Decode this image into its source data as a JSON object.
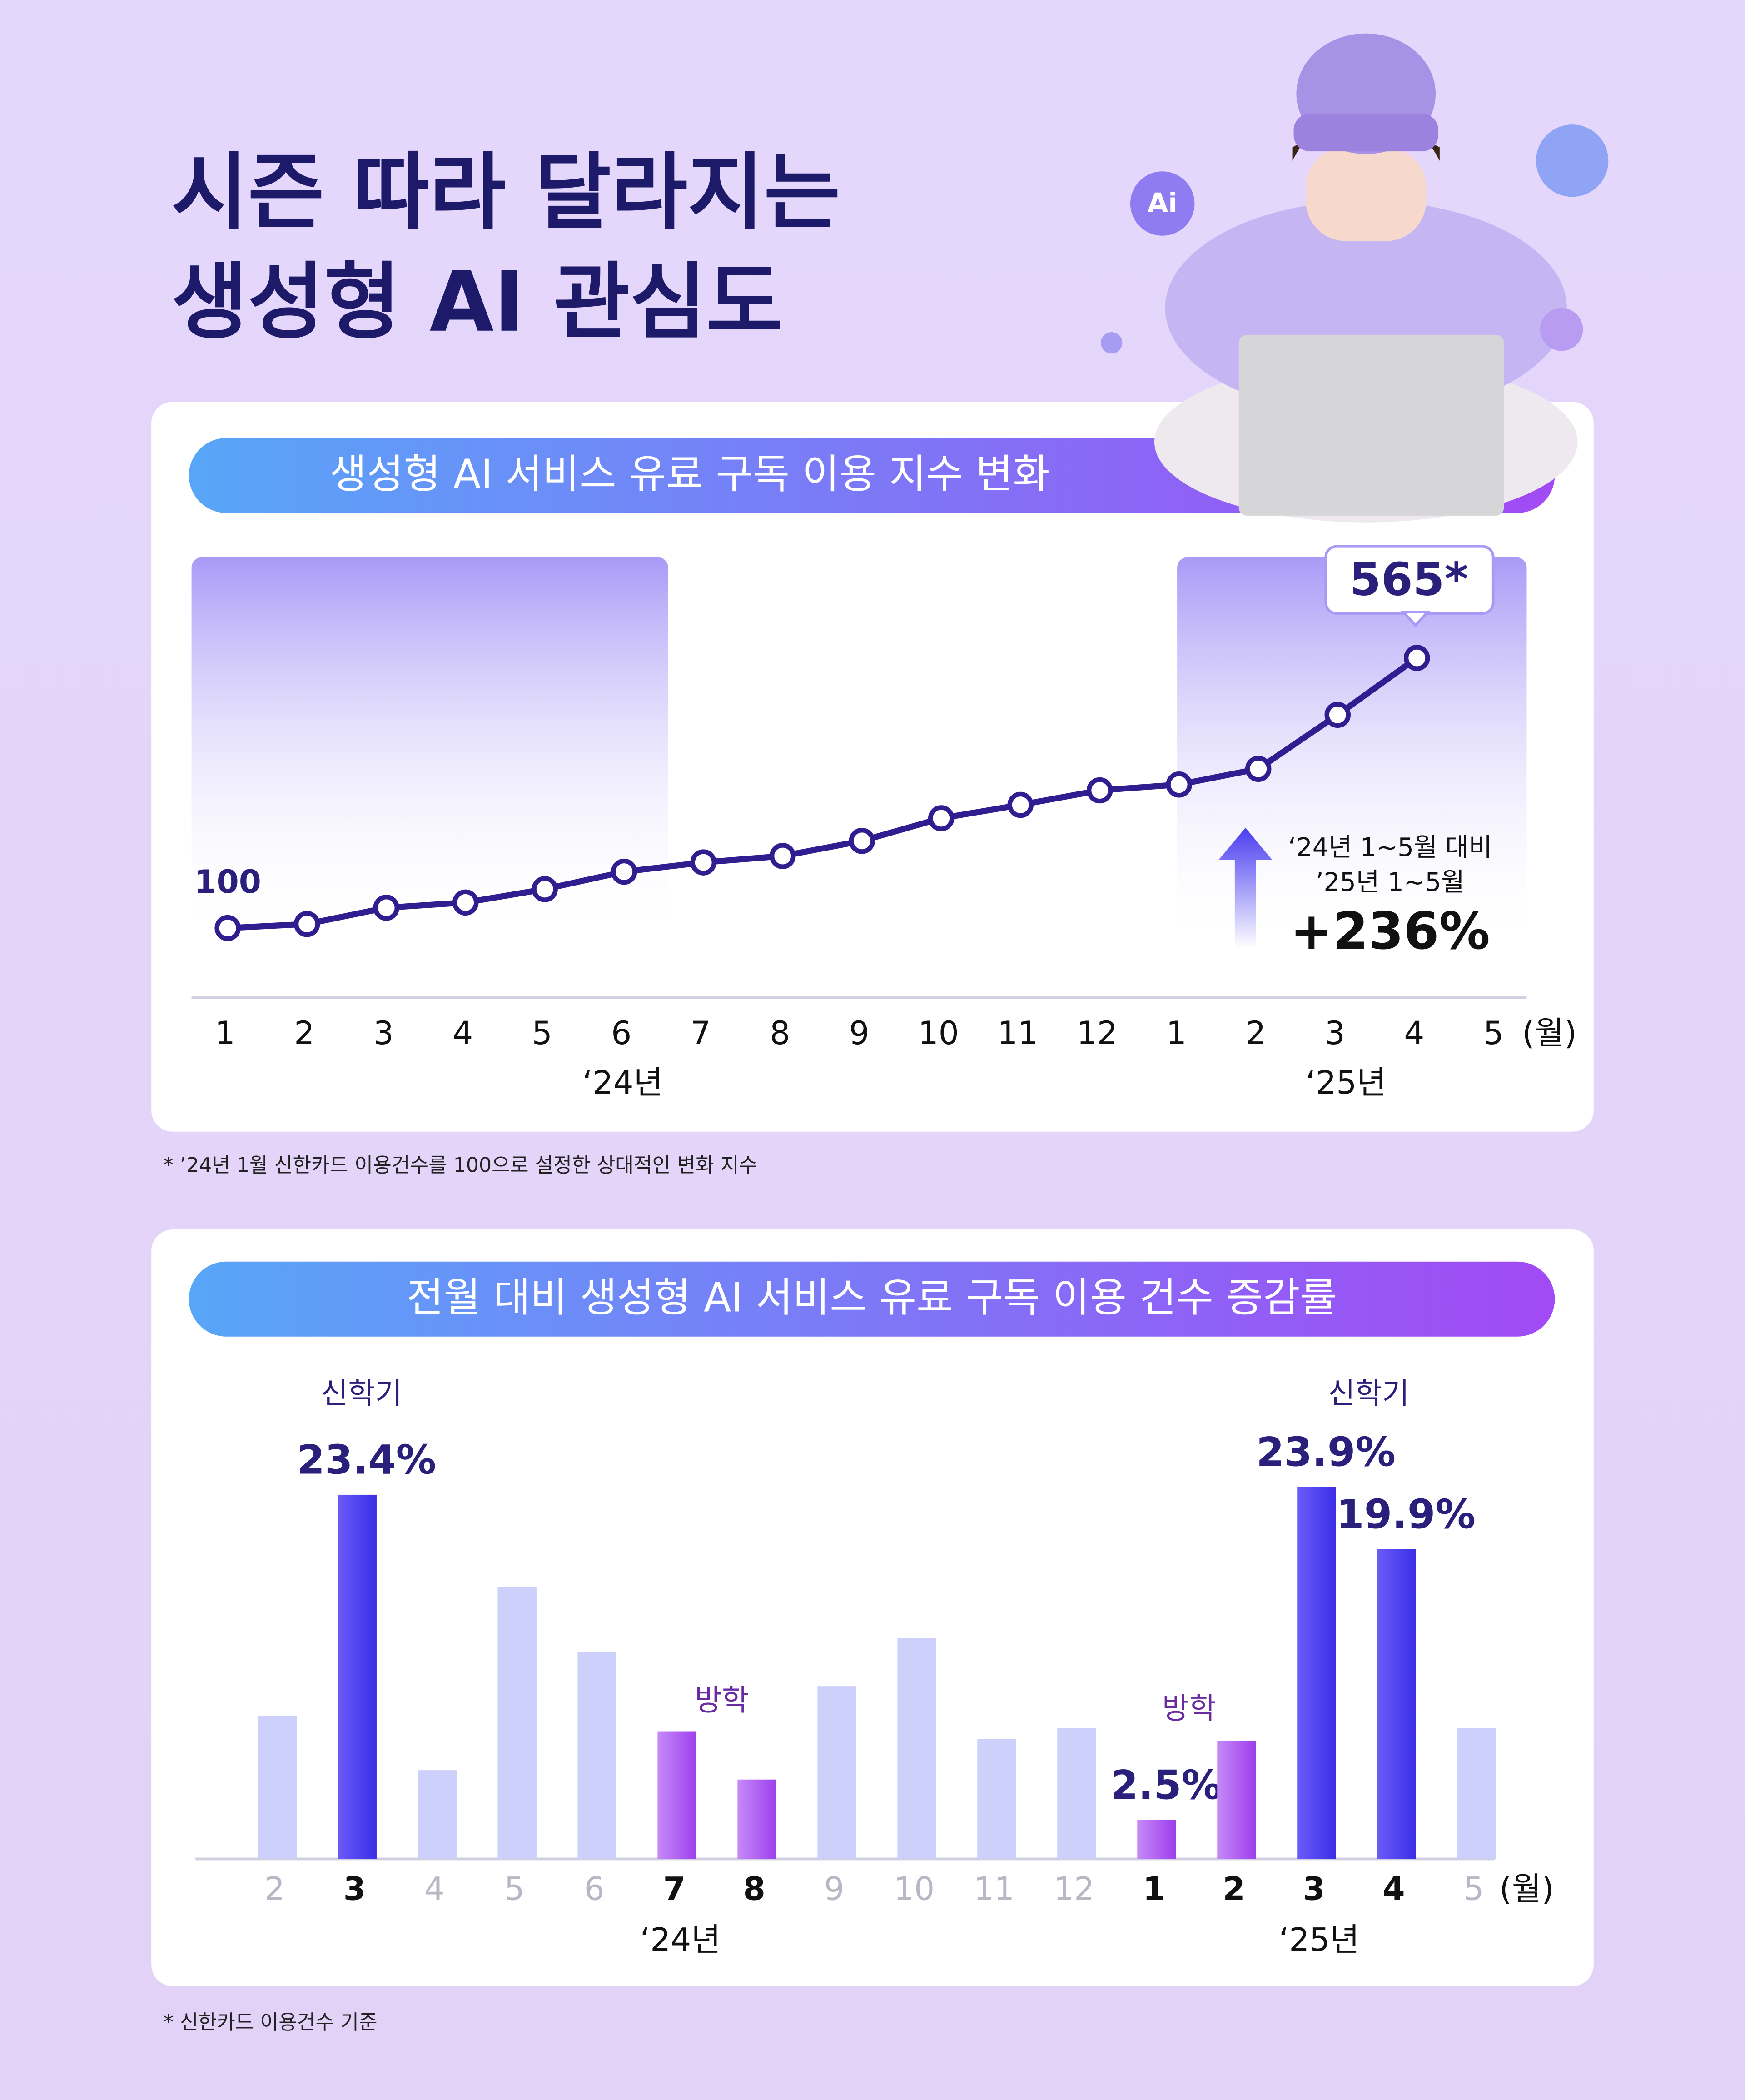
{
  "title": [
    "시즌 따라 달라지는",
    "생성형 AI 관심도"
  ],
  "chart_data": [
    {
      "type": "line",
      "title": "생성형 AI 서비스 유료 구독 이용 지수 변화",
      "categories": [
        "1",
        "2",
        "3",
        "4",
        "5",
        "6",
        "7",
        "8",
        "9",
        "10",
        "11",
        "12",
        "1",
        "2",
        "3",
        "4",
        "5"
      ],
      "x_unit": "(월)",
      "x_groups": [
        "‘24년",
        "‘25년"
      ],
      "values": [
        100,
        107,
        135,
        144,
        167,
        197,
        213,
        224,
        250,
        289,
        312,
        337,
        347,
        374,
        467,
        565,
        null
      ],
      "value_labels": [
        "100",
        null,
        null,
        null,
        null,
        null,
        null,
        null,
        null,
        null,
        null,
        null,
        null,
        null,
        null,
        "565*",
        null
      ],
      "color": "#2f1e8f",
      "ylim": [
        -20,
        720
      ],
      "annotation": [
        "‘24년 1~5월 대비",
        "’25년 1~5월",
        "+236%"
      ],
      "footnote": "* ’24년 1월 신한카드 이용건수를 100으로 설정한 상대적인 변화 지수"
    },
    {
      "type": "bar",
      "title": "전월 대비 생성형 AI 서비스 유료 구독 이용 건수 증감률",
      "categories": [
        "2",
        "3",
        "4",
        "5",
        "6",
        "7",
        "8",
        "9",
        "10",
        "11",
        "12",
        "1",
        "2",
        "3",
        "4",
        "5"
      ],
      "x_unit": "(월)",
      "x_groups": [
        "‘24년",
        "‘25년"
      ],
      "values": [
        9.2,
        23.4,
        5.7,
        17.5,
        13.3,
        8.2,
        5.1,
        11.1,
        14.2,
        7.7,
        8.4,
        2.5,
        7.6,
        23.9,
        19.9,
        8.4
      ],
      "value_labels": [
        null,
        "23.4%",
        null,
        null,
        null,
        null,
        null,
        null,
        null,
        null,
        null,
        "2.5%",
        null,
        "23.9%",
        "19.9%",
        null
      ],
      "colors": [
        "#cdd0fa",
        "#4b3ef0",
        "#cdd0fa",
        "#cdd0fa",
        "#cdd0fa",
        "#b04ef0",
        "#b04ef0",
        "#cdd0fa",
        "#cdd0fa",
        "#cdd0fa",
        "#cdd0fa",
        "#b04ef0",
        "#b04ef0",
        "#4b3ef0",
        "#4b3ef0",
        "#cdd0fa"
      ],
      "base_color": "#cdd0fa",
      "ylim": [
        0,
        25
      ],
      "annotations": [
        "신학기",
        "방학",
        "방학",
        "신학기"
      ],
      "footnote": "* 신한카드 이용건수 기준"
    }
  ]
}
